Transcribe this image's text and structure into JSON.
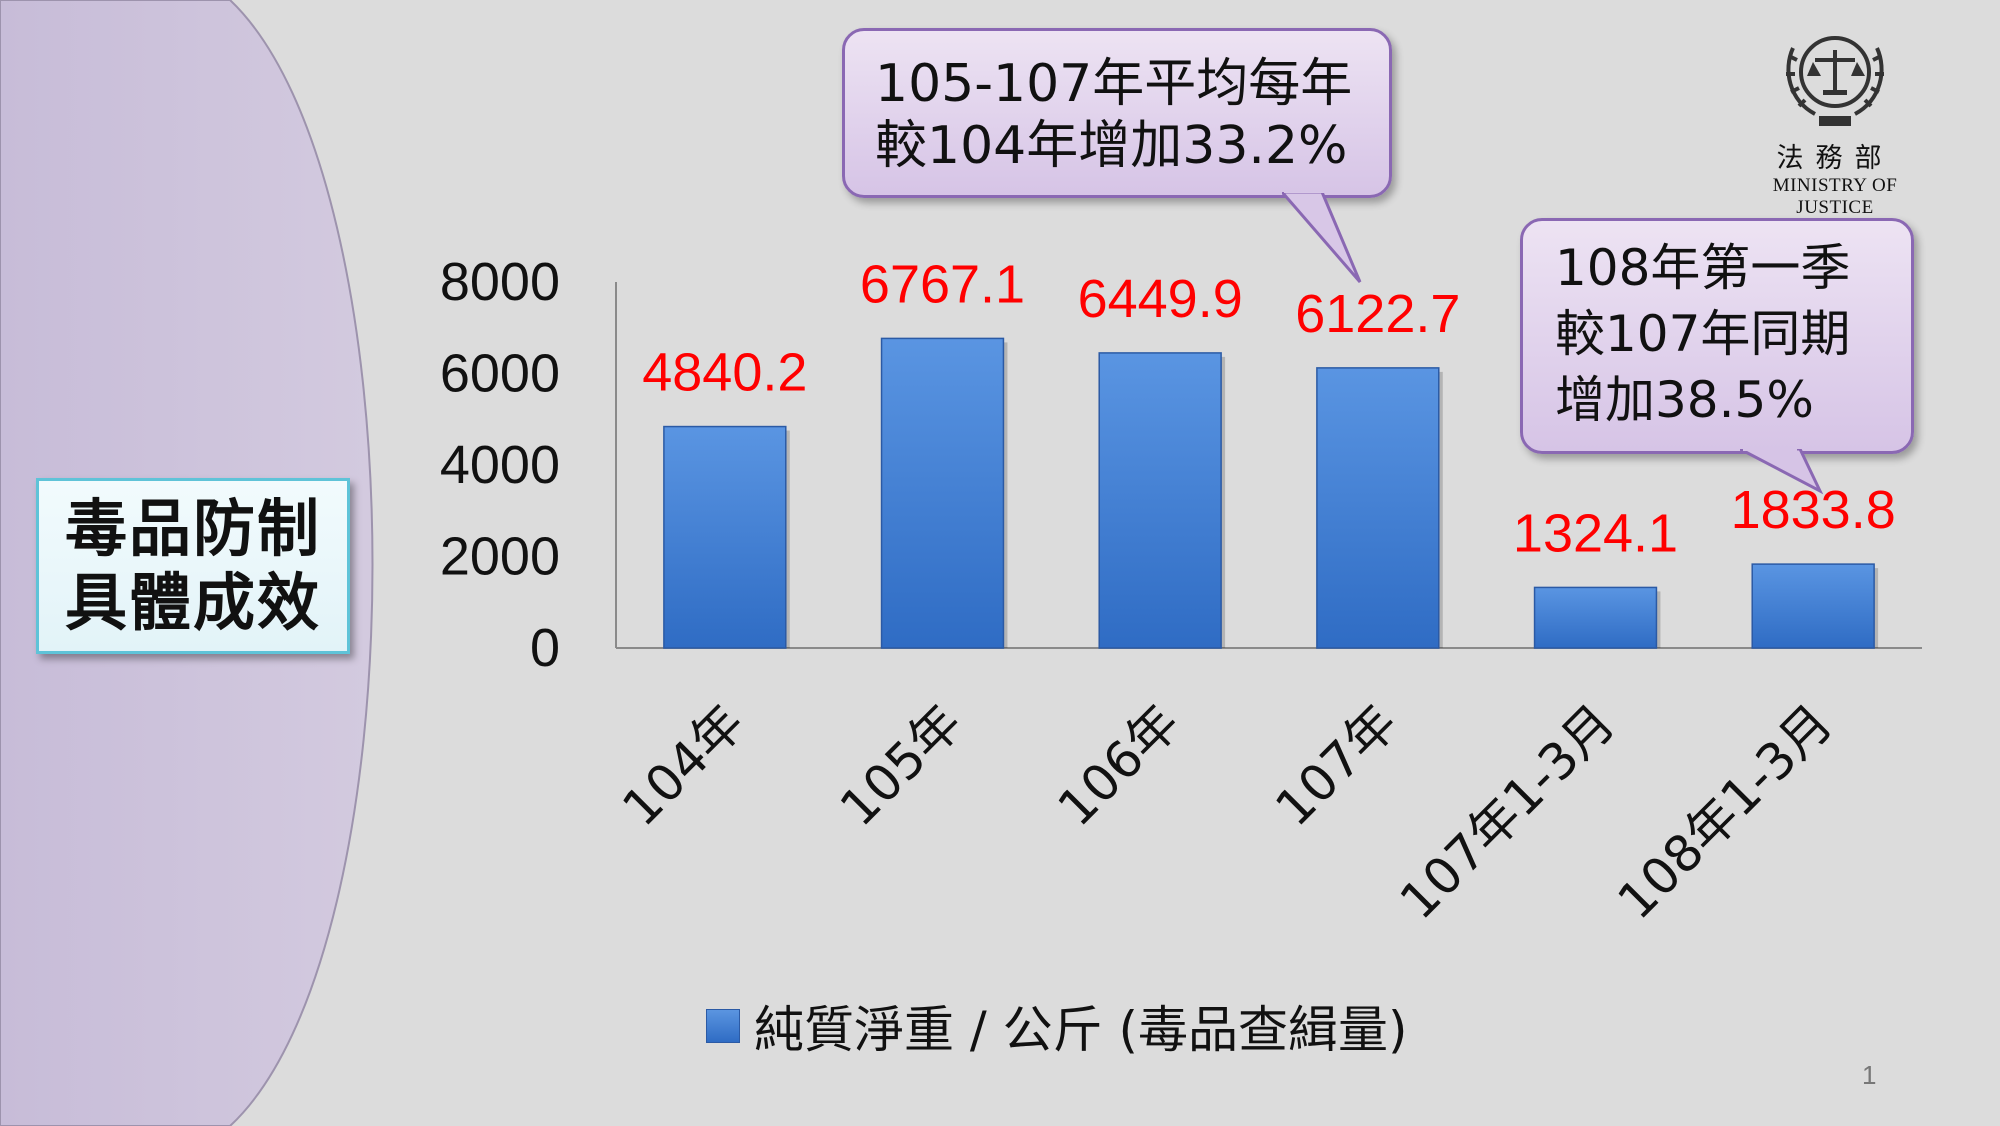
{
  "title_box": {
    "line1": "毒品防制",
    "line2": "具體成效"
  },
  "callouts": [
    {
      "lines": [
        "105-107年平均每年",
        "較104年增加33.2%"
      ]
    },
    {
      "lines": [
        "108年第一季",
        "較107年同期",
        "增加38.5%"
      ]
    }
  ],
  "logo": {
    "chinese": "法務部",
    "english": "MINISTRY OF JUSTICE",
    "icon": "ministry-of-justice-emblem"
  },
  "page_number": "1",
  "colors": {
    "bar": "#3c7bd6",
    "value_label": "#ff0000",
    "callout_fill": "#e4d8ef",
    "callout_border": "#8a68b3",
    "title_border": "#5fc3d8"
  },
  "chart_data": {
    "type": "bar",
    "categories": [
      "104年",
      "105年",
      "106年",
      "107年",
      "107年1-3月",
      "108年1-3月"
    ],
    "series": [
      {
        "name": "純質淨重 / 公斤 (毒品查緝量)",
        "values": [
          4840.2,
          6767.1,
          6449.9,
          6122.7,
          1324.1,
          1833.8
        ]
      }
    ],
    "value_labels": [
      "4840.2",
      "6767.1",
      "6449.9",
      "6122.7",
      "1324.1",
      "1833.8"
    ],
    "ylim": [
      0,
      8000
    ],
    "yticks": [
      0,
      2000,
      4000,
      6000,
      8000
    ],
    "grid": false,
    "legend_position": "bottom"
  }
}
